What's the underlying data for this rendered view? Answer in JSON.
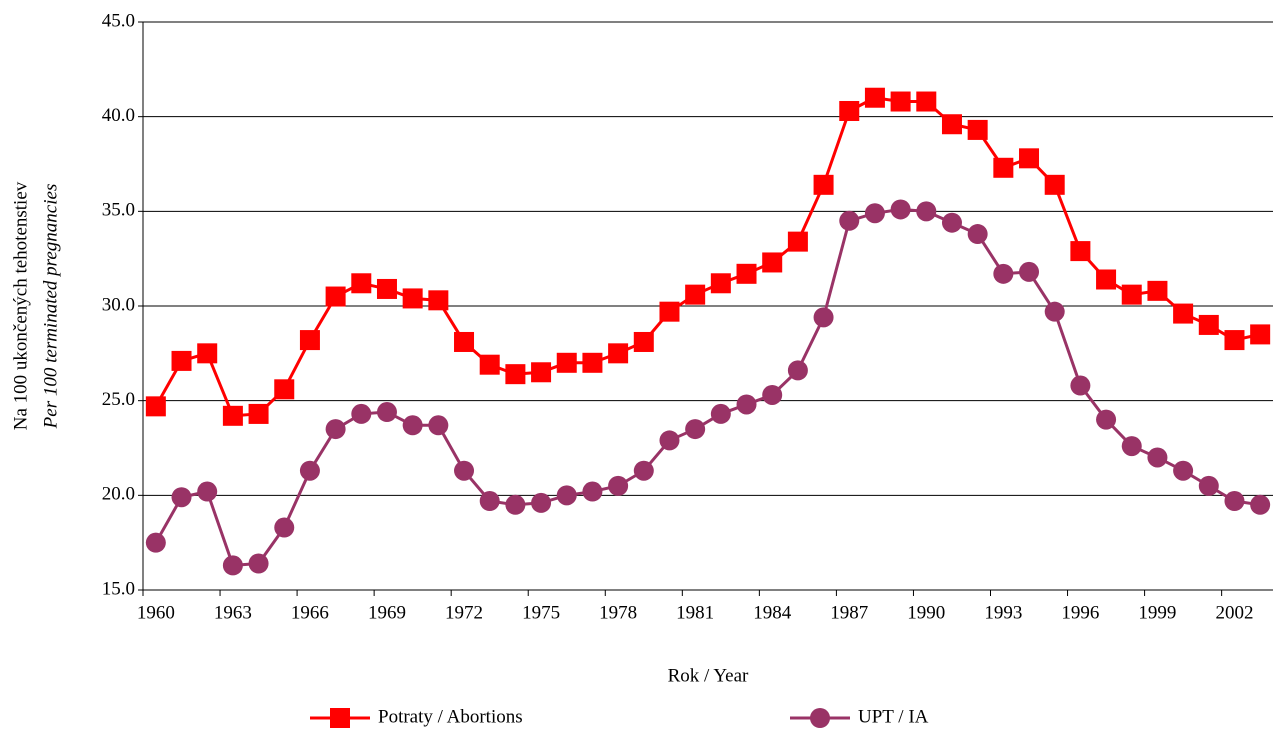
{
  "chart_data": {
    "type": "line",
    "ylabel": [
      "Na 100 ukončených tehotenstiev",
      "Per 100 terminated pregnancies"
    ],
    "xlabel": "Rok / Year",
    "categories": [
      1960,
      null,
      null,
      1963,
      null,
      null,
      1966,
      null,
      null,
      1969,
      null,
      null,
      1972,
      null,
      null,
      1975,
      null,
      null,
      1978,
      null,
      null,
      1981,
      null,
      null,
      1984,
      null,
      null,
      1987,
      null,
      null,
      1990,
      null,
      null,
      1993,
      null,
      null,
      1996,
      null,
      null,
      1999,
      null,
      null,
      2002,
      null
    ],
    "series": [
      {
        "name": "Potraty /  Abortions",
        "color": "#ff0000",
        "marker": "square",
        "values": [
          24.7,
          27.1,
          27.5,
          24.2,
          24.3,
          25.6,
          28.2,
          30.5,
          31.2,
          30.9,
          30.4,
          30.3,
          28.1,
          26.9,
          26.4,
          26.5,
          27.0,
          27.0,
          27.5,
          28.1,
          29.7,
          30.6,
          31.2,
          31.7,
          32.3,
          33.4,
          36.4,
          40.3,
          41.0,
          40.8,
          40.8,
          39.6,
          39.3,
          37.3,
          37.8,
          36.4,
          32.9,
          31.4,
          30.6,
          30.8,
          29.6,
          29.0,
          28.2,
          28.5
        ]
      },
      {
        "name": "UPT / IA",
        "color": "#993366",
        "marker": "circle",
        "values": [
          17.5,
          19.9,
          20.2,
          16.3,
          16.4,
          18.3,
          21.3,
          23.5,
          24.3,
          24.4,
          23.7,
          23.7,
          21.3,
          19.7,
          19.5,
          19.6,
          20.0,
          20.2,
          20.5,
          21.3,
          22.9,
          23.5,
          24.3,
          24.8,
          25.3,
          26.6,
          29.4,
          34.5,
          34.9,
          35.1,
          35.0,
          34.4,
          33.8,
          31.7,
          31.8,
          29.7,
          25.8,
          24.0,
          22.6,
          22.0,
          21.3,
          20.5,
          19.7,
          19.5
        ]
      }
    ],
    "ylim": [
      15,
      45
    ],
    "yticks": [
      {
        "value": 15,
        "label": "15.0"
      },
      {
        "value": 20,
        "label": "20.0"
      },
      {
        "value": 25,
        "label": "25.0"
      },
      {
        "value": 30,
        "label": "30.0"
      },
      {
        "value": 35,
        "label": "35.0"
      },
      {
        "value": 40,
        "label": "40.0"
      },
      {
        "value": 45,
        "label": "45.0"
      }
    ],
    "grid": true,
    "legend": "bottom"
  }
}
